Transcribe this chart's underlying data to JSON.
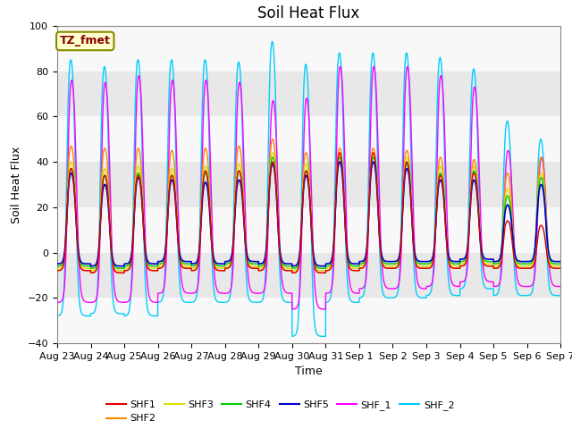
{
  "title": "Soil Heat Flux",
  "xlabel": "Time",
  "ylabel": "Soil Heat Flux",
  "ylim": [
    -40,
    100
  ],
  "yticks": [
    -40,
    -20,
    0,
    20,
    40,
    60,
    80,
    100
  ],
  "xtick_labels": [
    "Aug 23",
    "Aug 24",
    "Aug 25",
    "Aug 26",
    "Aug 27",
    "Aug 28",
    "Aug 29",
    "Aug 30",
    "Aug 31",
    "Sep 1",
    "Sep 2",
    "Sep 3",
    "Sep 4",
    "Sep 5",
    "Sep 6",
    "Sep 7"
  ],
  "colors": {
    "SHF1": "#dd0000",
    "SHF2": "#ff8800",
    "SHF3": "#dddd00",
    "SHF4": "#00cc00",
    "SHF5": "#0000cc",
    "SHF_1": "#ff00ff",
    "SHF_2": "#00ccff"
  },
  "annotation_text": "TZ_fmet",
  "annotation_box_facecolor": "#ffffcc",
  "annotation_text_color": "#880000",
  "annotation_border_color": "#888800",
  "background_color": "#ffffff",
  "plot_bg_color": "#e8e8e8",
  "grid_stripe_color": "#f8f8f8",
  "title_fontsize": 12,
  "axis_label_fontsize": 9,
  "tick_fontsize": 8,
  "n_days": 15,
  "n_pts": 200,
  "shf2_peaks": [
    85,
    82,
    85,
    85,
    85,
    84,
    93,
    83,
    88,
    88,
    88,
    86,
    81,
    58,
    50
  ],
  "shf2_troughs": [
    -28,
    -27,
    -28,
    -22,
    -22,
    -22,
    -22,
    -37,
    -22,
    -20,
    -20,
    -19,
    -16,
    -19,
    -19
  ],
  "shf1_peaks": [
    76,
    75,
    78,
    76,
    76,
    75,
    67,
    68,
    82,
    82,
    82,
    78,
    73,
    45,
    42
  ],
  "shf1_troughs": [
    -22,
    -22,
    -22,
    -18,
    -18,
    -18,
    -18,
    -25,
    -18,
    -16,
    -16,
    -15,
    -13,
    -15,
    -15
  ],
  "orange_peaks": [
    47,
    46,
    46,
    45,
    46,
    47,
    50,
    44,
    46,
    46,
    45,
    42,
    41,
    35,
    42
  ],
  "orange_troughs": [
    -8,
    -9,
    -8,
    -7,
    -8,
    -7,
    -8,
    -9,
    -8,
    -7,
    -7,
    -7,
    -6,
    -7,
    -7
  ],
  "yellow_peaks": [
    40,
    37,
    38,
    37,
    38,
    39,
    44,
    39,
    44,
    44,
    42,
    38,
    38,
    28,
    35
  ],
  "yellow_troughs": [
    -7,
    -8,
    -7,
    -6,
    -7,
    -6,
    -7,
    -8,
    -7,
    -6,
    -6,
    -6,
    -5,
    -6,
    -6
  ],
  "green_peaks": [
    37,
    34,
    35,
    34,
    35,
    36,
    42,
    36,
    42,
    42,
    39,
    35,
    36,
    25,
    33
  ],
  "green_troughs": [
    -6,
    -7,
    -6,
    -5,
    -6,
    -5,
    -6,
    -7,
    -6,
    -5,
    -5,
    -5,
    -4,
    -5,
    -5
  ],
  "blue_peaks": [
    35,
    30,
    33,
    32,
    31,
    32,
    39,
    34,
    40,
    40,
    37,
    32,
    32,
    21,
    30
  ],
  "blue_troughs": [
    -5,
    -6,
    -5,
    -4,
    -5,
    -4,
    -5,
    -6,
    -5,
    -4,
    -4,
    -4,
    -3,
    -4,
    -4
  ],
  "red_peaks": [
    37,
    34,
    34,
    34,
    36,
    36,
    40,
    36,
    44,
    44,
    40,
    34,
    35,
    14,
    12
  ],
  "red_troughs": [
    -8,
    -9,
    -8,
    -7,
    -8,
    -7,
    -8,
    -9,
    -8,
    -7,
    -7,
    -7,
    -6,
    -7,
    -7
  ]
}
